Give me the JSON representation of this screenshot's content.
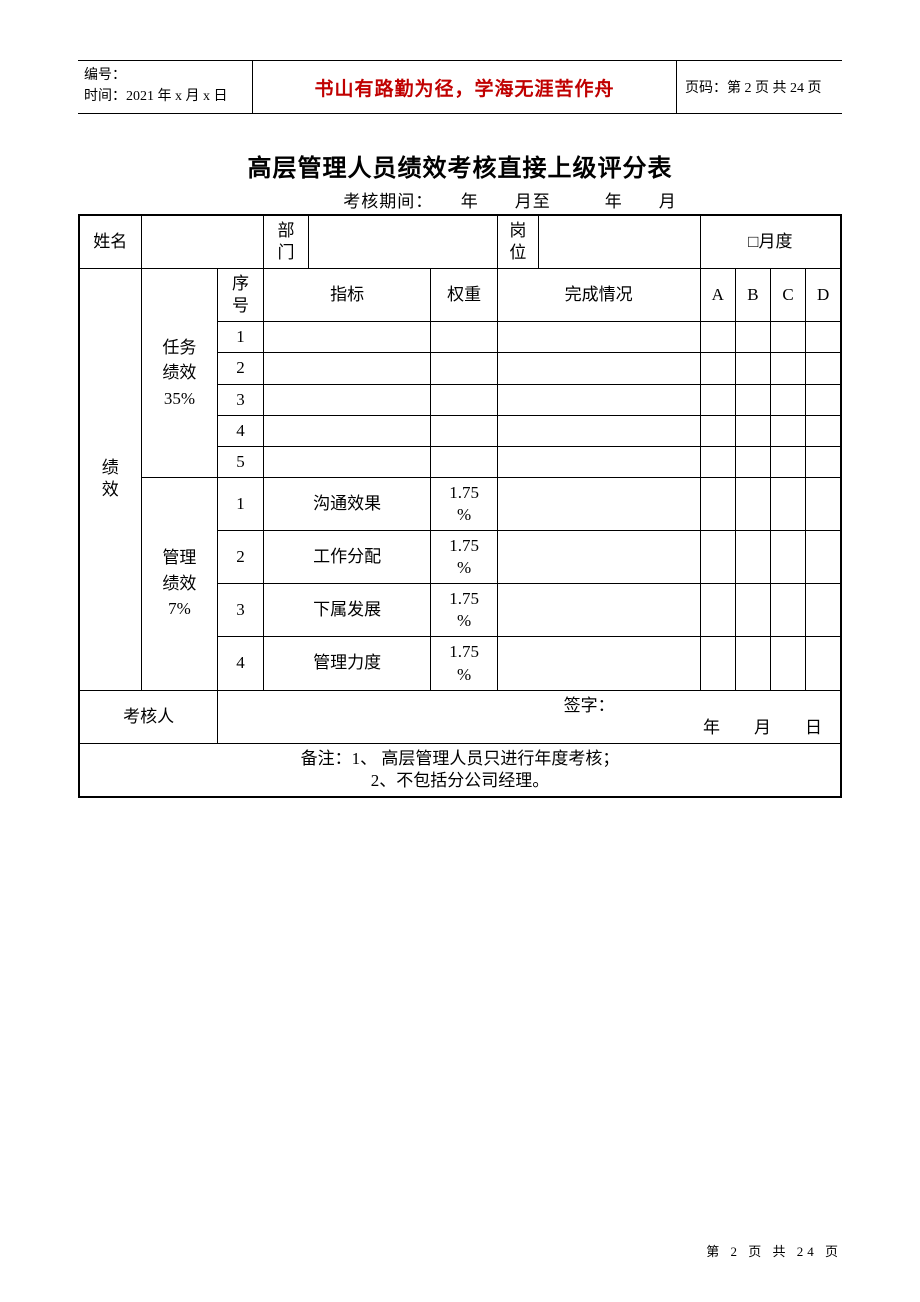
{
  "header": {
    "numbering_label": "编号：",
    "time_label": "时间：2021 年 x 月 x 日",
    "motto": "书山有路勤为径，学海无涯苦作舟",
    "page_code": "页码：第 2 页 共 24 页"
  },
  "title": "高层管理人员绩效考核直接上级评分表",
  "period_line": "考核期间：　　年　　月至　　　年　　月",
  "table": {
    "row1": {
      "name_label": "姓名",
      "dept_label": "部门",
      "post_label": "岗位",
      "monthly_label": "□月度"
    },
    "row2": {
      "seq_label": "序号",
      "indicator_label": "指标",
      "weight_label": "权重",
      "completion_label": "完成情况",
      "A": "A",
      "B": "B",
      "C": "C",
      "D": "D"
    },
    "perf_vertical": "绩效",
    "task_perf": {
      "label": "任务绩效35%",
      "rows": [
        "1",
        "2",
        "3",
        "4",
        "5"
      ]
    },
    "mgmt_perf": {
      "label": "管理绩效7%",
      "rows": [
        {
          "seq": "1",
          "indicator": "沟通效果",
          "weight": "1.75%"
        },
        {
          "seq": "2",
          "indicator": "工作分配",
          "weight": "1.75%"
        },
        {
          "seq": "3",
          "indicator": "下属发展",
          "weight": "1.75%"
        },
        {
          "seq": "4",
          "indicator": "管理力度",
          "weight": "1.75%"
        }
      ]
    },
    "reviewer_label": "考核人",
    "signature_line": "签字：",
    "date_line": "年　　月　　日",
    "notes_line1": "备注：1、 高层管理人员只进行年度考核；",
    "notes_line2": "2、不包括分公司经理。"
  },
  "footer": "第 2 页 共 24 页"
}
